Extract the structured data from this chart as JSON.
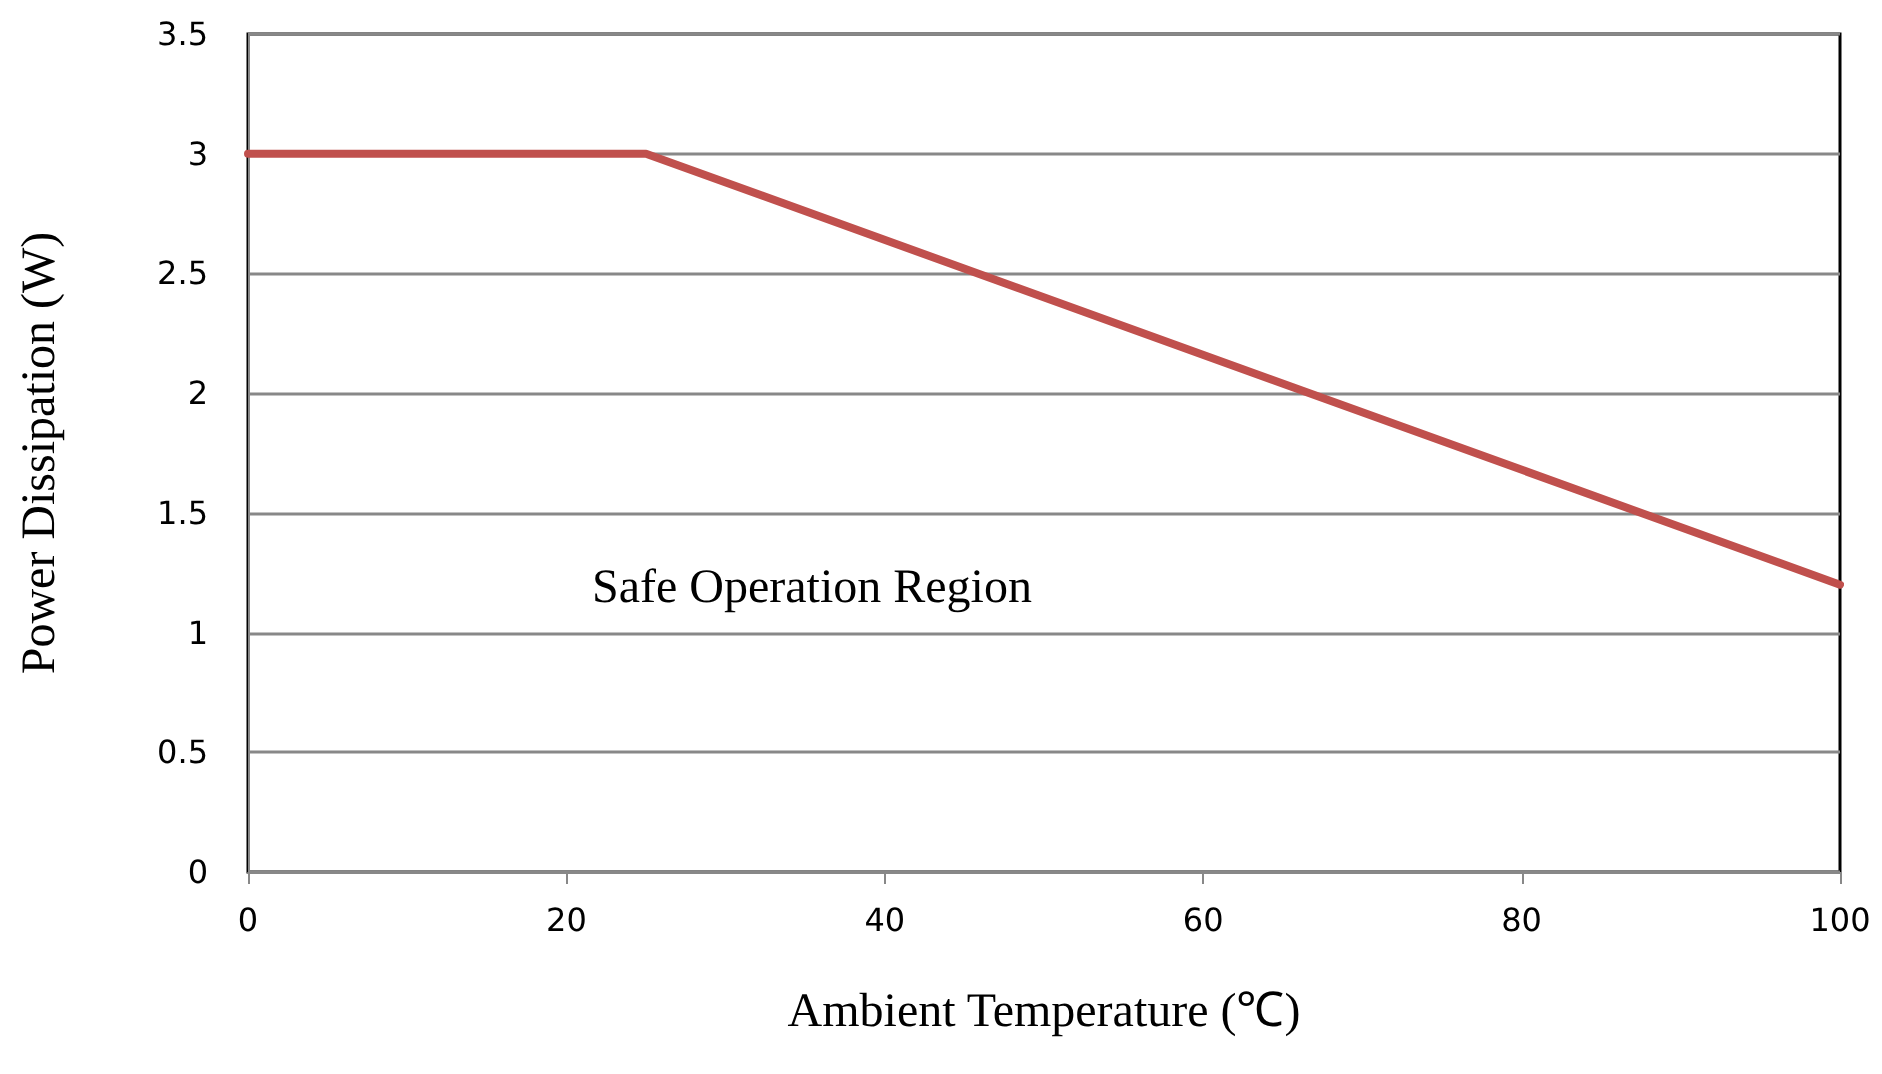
{
  "chart_data": {
    "type": "line",
    "xlabel": "Ambient Temperature (℃)",
    "ylabel": "Power Dissipation (W)",
    "annotations": [
      "Safe Operation Region"
    ],
    "x": [
      0,
      25,
      100
    ],
    "series": [
      {
        "color": "#c0504d",
        "values": [
          3,
          3,
          1.2
        ]
      }
    ],
    "xlim": [
      0,
      100
    ],
    "xticks": [
      0,
      20,
      40,
      60,
      80,
      100
    ],
    "ylim": [
      0,
      3.5
    ],
    "yticks": [
      0,
      0.5,
      1,
      1.5,
      2,
      2.5,
      3,
      3.5
    ],
    "grid": "y",
    "marker": "none",
    "line_style": "solid"
  }
}
